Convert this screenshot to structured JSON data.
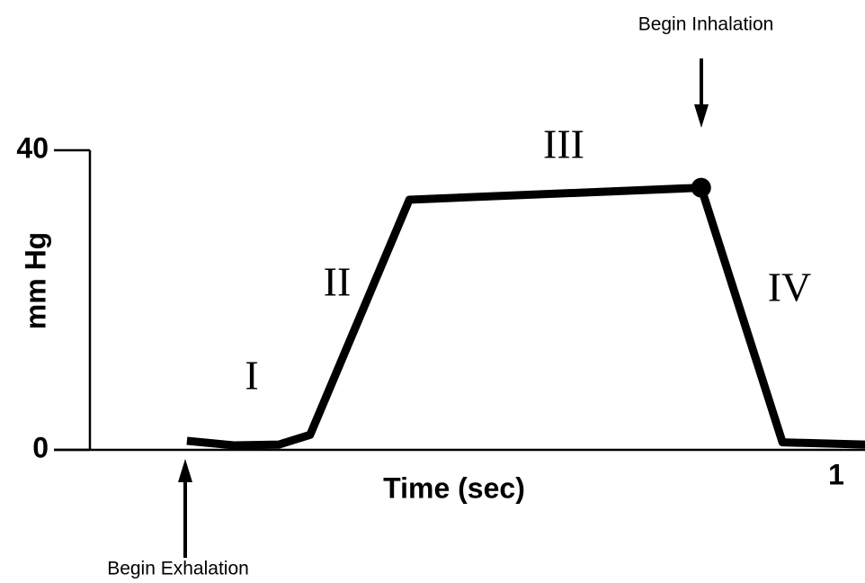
{
  "chart_data": {
    "type": "line",
    "x_label": "Time (sec)",
    "y_label": "mm Hg",
    "xlim": [
      0,
      1.04
    ],
    "ylim": [
      0,
      40
    ],
    "xticks": [
      1
    ],
    "yticks": [
      0,
      40
    ],
    "series": [
      {
        "color": "#000000",
        "x": [
          0.13,
          0.193,
          0.253,
          0.295,
          0.428,
          0.819,
          0.928,
          1.039
        ],
        "values": [
          1.2,
          0.6,
          0.7,
          2,
          33.4,
          35,
          1,
          0.7
        ]
      }
    ],
    "phases": [
      "I",
      "II",
      "III",
      "IV"
    ],
    "annotations": [
      "Begin Inhalation",
      "Begin Exhalation"
    ]
  }
}
